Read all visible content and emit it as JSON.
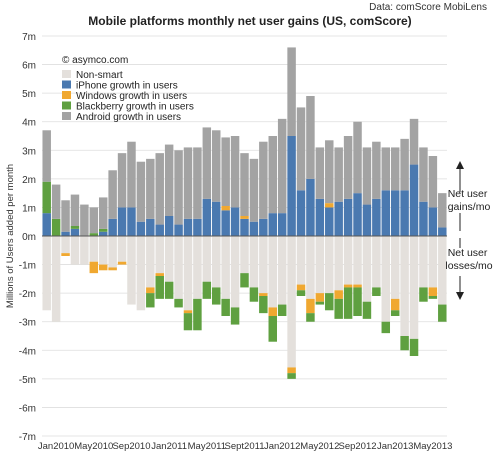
{
  "chart_data": {
    "type": "bar",
    "stacked": true,
    "title": "Mobile platforms monthly net user gains (US, comScore)",
    "source": "Data: comScore MobiLens",
    "credit": "© asymco.com",
    "ylabel": "Millions of Users added per month",
    "xlabel": "",
    "ylim": [
      -7,
      7
    ],
    "y_ticks": [
      -7,
      -6,
      -5,
      -4,
      -3,
      -2,
      -1,
      0,
      1,
      2,
      3,
      4,
      5,
      6,
      7
    ],
    "y_tick_suffix": "m",
    "x_tick_labels": [
      "Jan2010",
      "May2010",
      "Sep2010",
      "Jan2011",
      "May2011",
      "Sept2011",
      "Jan2012",
      "May2012",
      "Sep2012",
      "Jan2013",
      "May2013"
    ],
    "x_tick_every": 4,
    "grid": true,
    "legend_position": "top-left",
    "annotations": {
      "gains": "Net user gains/mo",
      "losses": "Net user losses/mo"
    },
    "months": [
      "Dec2009",
      "Jan2010",
      "Feb2010",
      "Mar2010",
      "Apr2010",
      "May2010",
      "Jun2010",
      "Jul2010",
      "Aug2010",
      "Sep2010",
      "Oct2010",
      "Nov2010",
      "Dec2010",
      "Jan2011",
      "Feb2011",
      "Mar2011",
      "Apr2011",
      "May2011",
      "Jun2011",
      "Jul2011",
      "Aug2011",
      "Sep2011",
      "Oct2011",
      "Nov2011",
      "Dec2011",
      "Jan2012",
      "Feb2012",
      "Mar2012",
      "Apr2012",
      "May2012",
      "Jun2012",
      "Jul2012",
      "Aug2012",
      "Sep2012",
      "Oct2012",
      "Nov2012",
      "Dec2012",
      "Jan2013",
      "Feb2013",
      "Mar2013",
      "Apr2013",
      "May2013",
      "Jun2013"
    ],
    "series": [
      {
        "name": "Non-smart",
        "color": "#e4e0dc",
        "values": [
          -2.6,
          -3.0,
          -0.6,
          -1.0,
          -1.0,
          -0.9,
          -1.0,
          -1.1,
          -0.9,
          -2.4,
          -2.6,
          -1.8,
          -1.3,
          -1.6,
          -2.2,
          -2.6,
          -2.2,
          -1.6,
          -1.8,
          -2.2,
          -2.5,
          -1.3,
          -1.8,
          -2.0,
          -2.5,
          -2.4,
          -4.6,
          -1.7,
          -2.2,
          -2.0,
          -2.0,
          -1.9,
          -1.7,
          -1.7,
          -2.3,
          -1.8,
          -3.0,
          -2.2,
          -3.5,
          -3.6,
          -1.8,
          -1.8,
          -2.4
        ]
      },
      {
        "name": "iPhone growth in users",
        "color": "#4a79b0",
        "values": [
          0.8,
          0.0,
          0.15,
          0.25,
          0.0,
          0.0,
          0.15,
          0.6,
          1.0,
          1.0,
          0.5,
          0.6,
          0.4,
          0.7,
          0.4,
          0.6,
          0.6,
          1.3,
          1.2,
          0.9,
          1.0,
          0.6,
          0.5,
          0.6,
          0.8,
          0.8,
          3.5,
          1.6,
          2.0,
          1.3,
          1.0,
          1.2,
          1.3,
          1.5,
          1.1,
          1.3,
          1.6,
          1.6,
          1.6,
          2.5,
          1.2,
          1.0,
          0.3
        ]
      },
      {
        "name": "Windows growth in users",
        "color": "#f0a830",
        "values": [
          0.0,
          0.0,
          -0.1,
          0.0,
          0.0,
          -0.4,
          -0.2,
          -0.1,
          -0.1,
          0.0,
          0.0,
          -0.2,
          -0.1,
          0.0,
          0.0,
          -0.1,
          0.0,
          0.0,
          0.0,
          0.15,
          0.0,
          0.1,
          0.0,
          -0.1,
          -0.3,
          0.0,
          -0.2,
          -0.2,
          -0.5,
          -0.3,
          0.15,
          -0.3,
          -0.1,
          -0.1,
          0.0,
          0.0,
          0.0,
          -0.4,
          0.0,
          0.0,
          0.0,
          -0.3,
          0.0
        ]
      },
      {
        "name": "Blackberry growth in users",
        "color": "#5fa040",
        "values": [
          1.1,
          0.6,
          0.0,
          0.1,
          0.0,
          0.1,
          0.1,
          0.0,
          0.0,
          0.0,
          0.0,
          -0.5,
          -0.8,
          -0.6,
          -0.3,
          -0.6,
          -1.1,
          -0.6,
          -0.6,
          -0.6,
          -0.6,
          -0.5,
          -0.5,
          -0.6,
          -0.9,
          -0.4,
          -0.2,
          -0.2,
          -0.3,
          -0.1,
          -0.6,
          -0.7,
          -1.1,
          -1.0,
          -0.6,
          -0.3,
          -0.4,
          -0.2,
          -0.5,
          -0.6,
          -0.5,
          -0.1,
          -0.6
        ]
      },
      {
        "name": "Android growth in users",
        "color": "#a3a3a3",
        "values": [
          1.8,
          1.2,
          1.1,
          1.1,
          1.1,
          0.9,
          1.1,
          1.7,
          1.9,
          2.3,
          2.1,
          2.1,
          2.5,
          2.5,
          2.6,
          2.5,
          2.5,
          2.5,
          2.5,
          2.4,
          2.5,
          2.2,
          2.2,
          2.7,
          2.7,
          3.3,
          3.1,
          2.9,
          2.9,
          1.8,
          2.2,
          1.9,
          2.2,
          2.5,
          2.0,
          2.0,
          1.5,
          1.5,
          1.8,
          1.6,
          1.9,
          1.8,
          1.2
        ]
      }
    ]
  }
}
